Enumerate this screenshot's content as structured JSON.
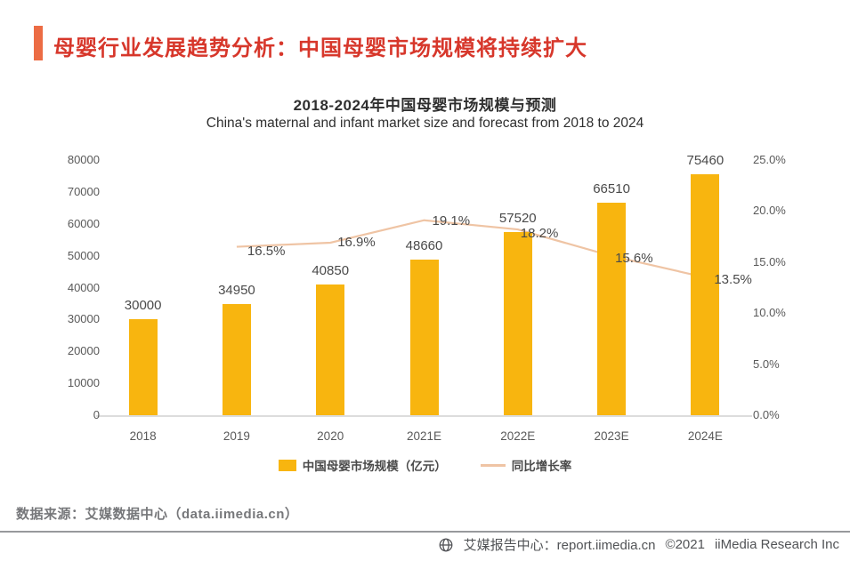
{
  "header": {
    "title": "母婴行业发展趋势分析：中国母婴市场规模将持续扩大",
    "accent_color": "#EC6C44",
    "title_color": "#D7372B"
  },
  "chart_data": {
    "type": "bar",
    "title": "2018-2024年中国母婴市场规模与预测",
    "subtitle": "China's maternal and infant market size and forecast from 2018 to 2024",
    "categories": [
      "2018",
      "2019",
      "2020",
      "2021E",
      "2022E",
      "2023E",
      "2024E"
    ],
    "series": [
      {
        "name": "中国母婴市场规模（亿元）",
        "type": "bar",
        "axis": "left",
        "color": "#F8B50F",
        "values": [
          30000,
          34950,
          40850,
          48660,
          57520,
          66510,
          75460
        ],
        "value_labels": [
          "30000",
          "34950",
          "40850",
          "48660",
          "57520",
          "66510",
          "75460"
        ]
      },
      {
        "name": "同比增长率",
        "type": "line",
        "axis": "right",
        "color": "#EFC4A4",
        "values": [
          null,
          16.5,
          16.9,
          19.1,
          18.2,
          15.6,
          13.5
        ],
        "value_labels": [
          "",
          "16.5%",
          "16.9%",
          "19.1%",
          "18.2%",
          "15.6%",
          "13.5%"
        ]
      }
    ],
    "left_axis": {
      "min": 0,
      "max": 80000,
      "step": 10000,
      "ticks": [
        "0",
        "10000",
        "20000",
        "30000",
        "40000",
        "50000",
        "60000",
        "70000",
        "80000"
      ]
    },
    "right_axis": {
      "min": 0,
      "max": 25,
      "step": 5,
      "ticks": [
        "0.0%",
        "5.0%",
        "10.0%",
        "15.0%",
        "20.0%",
        "25.0%"
      ]
    },
    "grid": "off",
    "legend_position": "bottom"
  },
  "legend": {
    "items": [
      {
        "label": "中国母婴市场规模（亿元）",
        "swatch": "bar"
      },
      {
        "label": "同比增长率",
        "swatch": "line"
      }
    ]
  },
  "source": {
    "text": "数据来源：艾媒数据中心（data.iimedia.cn）"
  },
  "footer": {
    "brand": "艾媒报告中心：report.iimedia.cn",
    "copyright": "©2021",
    "company": "iiMedia Research  Inc",
    "icon": "globe-icon"
  }
}
